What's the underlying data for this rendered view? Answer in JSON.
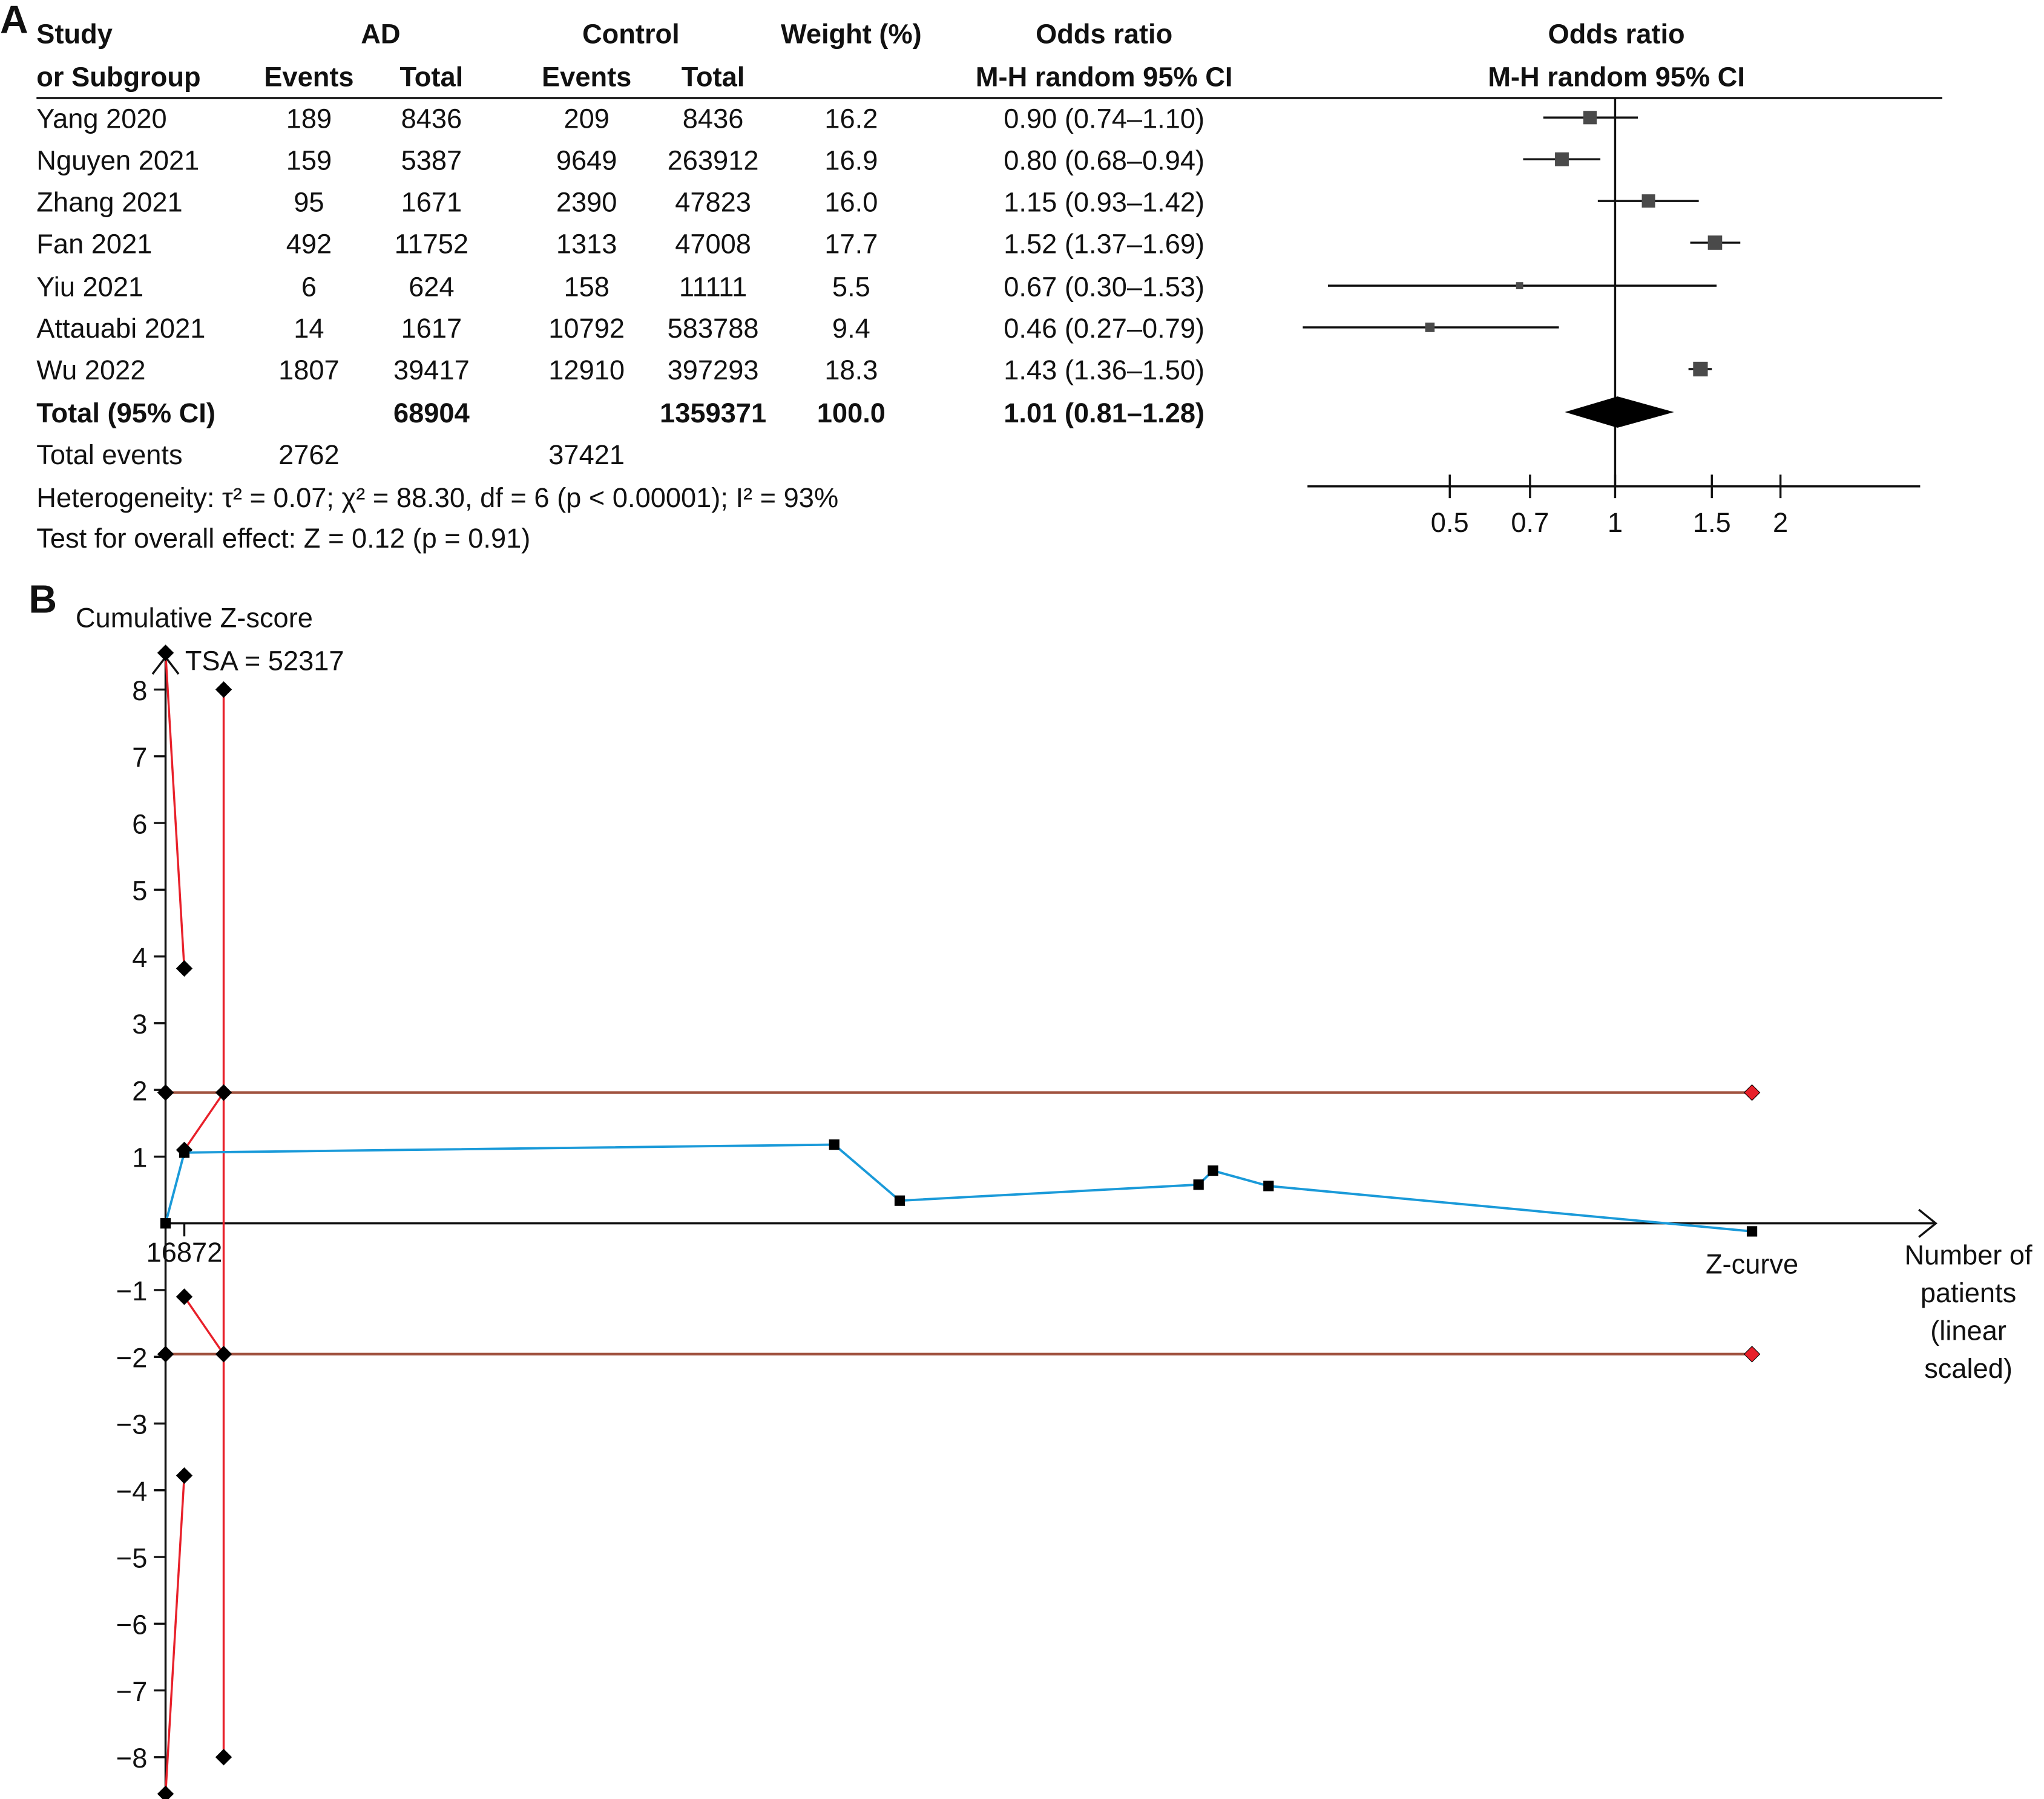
{
  "panel_a": {
    "label": "A",
    "headers": {
      "study_line1": "Study",
      "study_line2": "or Subgroup",
      "ad": "AD",
      "control": "Control",
      "events": "Events",
      "total": "Total",
      "weight": "Weight (%)",
      "or_line1": "Odds ratio",
      "or_line2": "M-H random 95% CI",
      "plot_line1": "Odds ratio",
      "plot_line2": "M-H random 95% CI"
    },
    "rows": [
      {
        "study": "Yang 2020",
        "ad_events": "189",
        "ad_total": "8436",
        "ctrl_events": "209",
        "ctrl_total": "8436",
        "weight": "16.2",
        "or_text": "0.90 (0.74–1.10)"
      },
      {
        "study": "Nguyen 2021",
        "ad_events": "159",
        "ad_total": "5387",
        "ctrl_events": "9649",
        "ctrl_total": "263912",
        "weight": "16.9",
        "or_text": "0.80 (0.68–0.94)"
      },
      {
        "study": "Zhang 2021",
        "ad_events": "95",
        "ad_total": "1671",
        "ctrl_events": "2390",
        "ctrl_total": "47823",
        "weight": "16.0",
        "or_text": "1.15 (0.93–1.42)"
      },
      {
        "study": "Fan 2021",
        "ad_events": "492",
        "ad_total": "11752",
        "ctrl_events": "1313",
        "ctrl_total": "47008",
        "weight": "17.7",
        "or_text": "1.52 (1.37–1.69)"
      },
      {
        "study": "Yiu 2021",
        "ad_events": "6",
        "ad_total": "624",
        "ctrl_events": "158",
        "ctrl_total": "11111",
        "weight": "5.5",
        "or_text": "0.67 (0.30–1.53)"
      },
      {
        "study": "Attauabi 2021",
        "ad_events": "14",
        "ad_total": "1617",
        "ctrl_events": "10792",
        "ctrl_total": "583788",
        "weight": "9.4",
        "or_text": "0.46 (0.27–0.79)"
      },
      {
        "study": "Wu 2022",
        "ad_events": "1807",
        "ad_total": "39417",
        "ctrl_events": "12910",
        "ctrl_total": "397293",
        "weight": "18.3",
        "or_text": "1.43 (1.36–1.50)"
      }
    ],
    "total_row": {
      "study": "Total (95% CI)",
      "ad_total": "68904",
      "ctrl_total": "1359371",
      "weight": "100.0",
      "or_text": "1.01 (0.81–1.28)"
    },
    "events_row": {
      "label": "Total events",
      "ad_events": "2762",
      "ctrl_events": "37421"
    },
    "heterogeneity": "Heterogeneity: τ² = 0.07; χ² = 88.30, df = 6 (p < 0.00001); I² = 93%",
    "overall_effect": "Test for overall effect: Z = 0.12 (p = 0.91)"
  },
  "panel_b": {
    "label": "B",
    "ylabel": "Cumulative Z-score",
    "tsa_label": "TSA = 52317",
    "x_tick_label": "16872",
    "zcurve_label": "Z-curve",
    "xlabel_lines": [
      "Number of",
      "patients",
      "(linear",
      "scaled)"
    ]
  },
  "chart_data": [
    {
      "type": "forest",
      "scale": "log",
      "x_ticks": [
        "0.5",
        "0.7",
        "1",
        "1.5",
        "2"
      ],
      "x_tick_values": [
        0.5,
        0.7,
        1,
        1.5,
        2
      ],
      "studies": [
        {
          "or": 0.9,
          "lo": 0.74,
          "hi": 1.1,
          "weight": 16.2
        },
        {
          "or": 0.8,
          "lo": 0.68,
          "hi": 0.94,
          "weight": 16.9
        },
        {
          "or": 1.15,
          "lo": 0.93,
          "hi": 1.42,
          "weight": 16.0
        },
        {
          "or": 1.52,
          "lo": 1.37,
          "hi": 1.69,
          "weight": 17.7
        },
        {
          "or": 0.67,
          "lo": 0.3,
          "hi": 1.53,
          "weight": 5.5
        },
        {
          "or": 0.46,
          "lo": 0.27,
          "hi": 0.79,
          "weight": 9.4
        },
        {
          "or": 1.43,
          "lo": 1.36,
          "hi": 1.5,
          "weight": 18.3
        }
      ],
      "pooled": {
        "or": 1.01,
        "lo": 0.81,
        "hi": 1.28
      },
      "square_color": "#4a4a4a"
    },
    {
      "type": "line",
      "ylabel": "Cumulative Z-score",
      "xlabel": "Number of patients (linear scaled)",
      "xlim": [
        0,
        1428275
      ],
      "ylim": [
        -8.5,
        8.5
      ],
      "y_ticks": [
        8,
        7,
        6,
        5,
        4,
        3,
        2,
        1,
        -1,
        -2,
        -3,
        -4,
        -5,
        -6,
        -7,
        -8
      ],
      "x_ticks": [
        16872
      ],
      "tsa": 52317,
      "z_curve": {
        "name": "Z-curve",
        "color": "#1a9ad9",
        "x": [
          0,
          16872,
          602000,
          661000,
          930000,
          943000,
          993000,
          1428275
        ],
        "y": [
          0,
          1.06,
          1.18,
          0.34,
          0.58,
          0.79,
          0.56,
          -0.12
        ]
      },
      "monitoring_boundary_upper": {
        "color": "#e8202a",
        "x": [
          0,
          16872
        ],
        "y": [
          8.55,
          3.82
        ]
      },
      "monitoring_boundary_lower": {
        "color": "#e8202a",
        "x": [
          0,
          16872
        ],
        "y": [
          -8.55,
          -3.78
        ]
      },
      "futility_upper": {
        "color": "#e8202a",
        "x": [
          16872,
          52317
        ],
        "y": [
          1.1,
          1.96
        ]
      },
      "futility_lower": {
        "color": "#e8202a",
        "x": [
          16872,
          52317
        ],
        "y": [
          -1.1,
          -1.96
        ]
      },
      "tsa_line": {
        "color": "#e8202a",
        "x": [
          52317,
          52317
        ],
        "y": [
          8,
          -8
        ]
      },
      "conventional_upper": {
        "color": "#a0523f",
        "x": [
          0,
          1428275
        ],
        "y": [
          1.96,
          1.96
        ]
      },
      "conventional_lower": {
        "color": "#a0523f",
        "x": [
          0,
          1428275
        ],
        "y": [
          -1.96,
          -1.96
        ]
      },
      "end_marker_color": "#e8202a"
    }
  ]
}
